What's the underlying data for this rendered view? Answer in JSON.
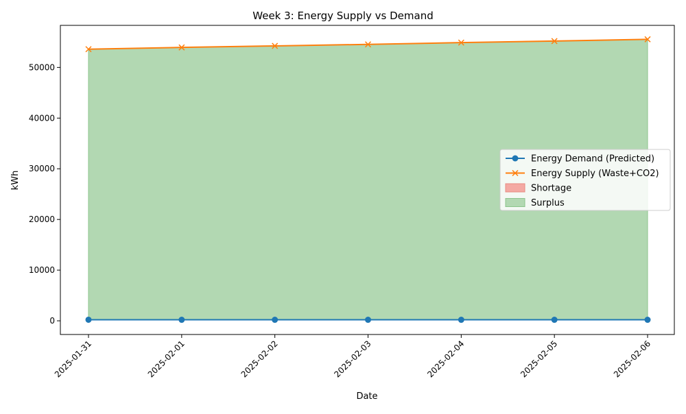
{
  "chart_data": {
    "type": "line",
    "title": "Week 3: Energy Supply vs Demand",
    "xlabel": "Date",
    "ylabel": "kWh",
    "x": [
      "2025-01-31",
      "2025-02-01",
      "2025-02-02",
      "2025-02-03",
      "2025-02-04",
      "2025-02-05",
      "2025-02-06"
    ],
    "series": [
      {
        "name": "Energy Demand (Predicted)",
        "marker": "circle",
        "color": "#1f77b4",
        "values": [
          210,
          205,
          205,
          205,
          200,
          200,
          200
        ]
      },
      {
        "name": "Energy Supply (Waste+CO2)",
        "marker": "x",
        "color": "#ff7f0e",
        "values": [
          53600,
          53950,
          54250,
          54550,
          54900,
          55200,
          55550
        ]
      }
    ],
    "fills": [
      {
        "name": "Shortage",
        "color": "#f4a9a3",
        "edge": "#e88a82"
      },
      {
        "name": "Surplus",
        "color": "#b2d8b2",
        "edge": "#8cc48c"
      }
    ],
    "yticks": [
      0,
      10000,
      20000,
      30000,
      40000,
      50000
    ],
    "ylim": [
      -2700,
      58300
    ],
    "grid": false,
    "legend": "center-right"
  }
}
